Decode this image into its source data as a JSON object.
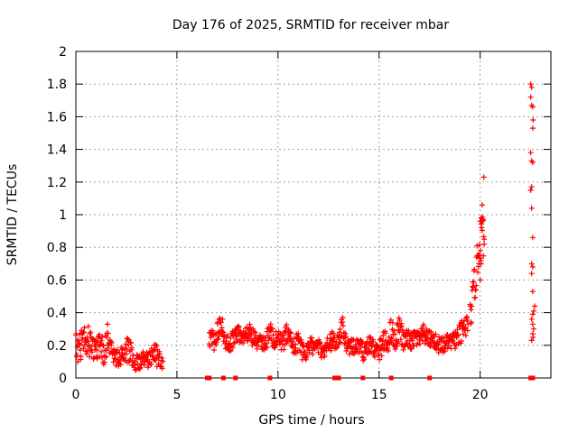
{
  "chart_data": {
    "type": "scatter",
    "title": "Day 176 of 2025, SRMTID for receiver mbar",
    "xlabel": "GPS time / hours",
    "ylabel": "SRMTID / TECUs",
    "xlim": [
      0,
      23.5
    ],
    "ylim": [
      0,
      2
    ],
    "xticks": [
      0,
      5,
      10,
      15,
      20
    ],
    "xtick_labels": [
      "0",
      "5",
      "10",
      "15",
      "20"
    ],
    "yticks": [
      0,
      0.2,
      0.4,
      0.6,
      0.8,
      1.0,
      1.2,
      1.4,
      1.6,
      1.8,
      2.0
    ],
    "ytick_labels": [
      "0",
      "0.2",
      "0.4",
      "0.6",
      "0.8",
      "1",
      "1.2",
      "1.4",
      "1.6",
      "1.8",
      "2"
    ],
    "grid": true,
    "marker": "+",
    "color": "#ff0000",
    "series": [
      {
        "name": "SRMTID",
        "segments": [
          {
            "x": [
              0.0,
              0.2,
              0.4,
              0.6,
              0.8,
              1.0,
              1.2,
              1.4,
              1.6,
              1.8,
              2.0,
              2.2,
              2.4,
              2.6,
              2.8,
              3.0,
              3.2,
              3.4,
              3.6,
              3.8,
              4.0,
              4.2,
              4.3
            ],
            "y": [
              0.2,
              0.18,
              0.26,
              0.22,
              0.2,
              0.17,
              0.2,
              0.15,
              0.28,
              0.14,
              0.12,
              0.13,
              0.14,
              0.2,
              0.12,
              0.09,
              0.1,
              0.12,
              0.11,
              0.14,
              0.15,
              0.08,
              0.1
            ],
            "spread": [
              0.09,
              0.1,
              0.08,
              0.1,
              0.09,
              0.07,
              0.08,
              0.08,
              0.09,
              0.06,
              0.06,
              0.06,
              0.06,
              0.1,
              0.06,
              0.05,
              0.05,
              0.05,
              0.05,
              0.06,
              0.08,
              0.05,
              0.05
            ]
          },
          {
            "x": [
              6.6,
              6.8,
              7.0,
              7.2,
              7.4,
              7.6,
              7.8,
              8.0,
              8.2,
              8.4,
              8.6,
              8.8,
              9.0,
              9.2,
              9.4,
              9.6,
              9.8,
              10.0,
              10.2,
              10.4,
              10.6,
              10.8,
              11.0,
              11.2,
              11.4,
              11.6,
              11.8,
              12.0,
              12.2,
              12.4,
              12.6,
              12.8,
              13.0,
              13.2,
              13.4,
              13.6,
              13.8,
              14.0,
              14.2,
              14.4,
              14.6,
              14.8,
              15.0,
              15.2,
              15.4,
              15.6,
              15.8,
              16.0,
              16.2,
              16.4,
              16.6,
              16.8,
              17.0,
              17.2,
              17.4,
              17.6,
              17.8,
              18.0,
              18.2,
              18.4,
              18.6,
              18.8,
              19.0,
              19.2,
              19.4
            ],
            "y": [
              0.25,
              0.22,
              0.28,
              0.34,
              0.22,
              0.2,
              0.24,
              0.28,
              0.26,
              0.25,
              0.29,
              0.24,
              0.22,
              0.2,
              0.21,
              0.3,
              0.22,
              0.25,
              0.2,
              0.27,
              0.24,
              0.2,
              0.22,
              0.16,
              0.15,
              0.2,
              0.19,
              0.2,
              0.16,
              0.19,
              0.22,
              0.23,
              0.21,
              0.32,
              0.2,
              0.19,
              0.18,
              0.2,
              0.16,
              0.19,
              0.21,
              0.17,
              0.16,
              0.23,
              0.2,
              0.3,
              0.22,
              0.32,
              0.22,
              0.24,
              0.22,
              0.25,
              0.23,
              0.27,
              0.24,
              0.24,
              0.22,
              0.2,
              0.2,
              0.22,
              0.22,
              0.24,
              0.26,
              0.3,
              0.33
            ],
            "spread": [
              0.06,
              0.07,
              0.06,
              0.06,
              0.05,
              0.05,
              0.06,
              0.06,
              0.05,
              0.05,
              0.06,
              0.06,
              0.06,
              0.05,
              0.05,
              0.06,
              0.06,
              0.06,
              0.06,
              0.06,
              0.05,
              0.06,
              0.06,
              0.06,
              0.05,
              0.06,
              0.05,
              0.05,
              0.05,
              0.06,
              0.06,
              0.06,
              0.05,
              0.08,
              0.05,
              0.05,
              0.05,
              0.05,
              0.06,
              0.05,
              0.06,
              0.06,
              0.06,
              0.08,
              0.06,
              0.08,
              0.07,
              0.07,
              0.06,
              0.06,
              0.05,
              0.06,
              0.05,
              0.06,
              0.05,
              0.05,
              0.05,
              0.06,
              0.05,
              0.05,
              0.05,
              0.06,
              0.07,
              0.08,
              0.08
            ]
          },
          {
            "x": [
              19.5,
              19.6,
              19.7,
              19.8,
              19.9,
              20.0,
              20.1,
              20.2
            ],
            "y": [
              0.38,
              0.45,
              0.55,
              0.65,
              0.75,
              0.82,
              0.88,
              0.85
            ],
            "spread": [
              0.08,
              0.1,
              0.12,
              0.12,
              0.12,
              0.12,
              0.14,
              0.1
            ]
          }
        ],
        "sparse_points": [
          {
            "x": 20.0,
            "y": 0.96
          },
          {
            "x": 20.05,
            "y": 0.98
          },
          {
            "x": 20.1,
            "y": 1.06
          },
          {
            "x": 20.15,
            "y": 0.97
          },
          {
            "x": 20.18,
            "y": 1.23
          },
          {
            "x": 20.2,
            "y": 0.82
          },
          {
            "x": 20.0,
            "y": 0.6
          },
          {
            "x": 20.05,
            "y": 0.7
          },
          {
            "x": 22.5,
            "y": 1.8
          },
          {
            "x": 22.55,
            "y": 1.78
          },
          {
            "x": 22.5,
            "y": 1.72
          },
          {
            "x": 22.55,
            "y": 1.67
          },
          {
            "x": 22.6,
            "y": 1.66
          },
          {
            "x": 22.62,
            "y": 1.58
          },
          {
            "x": 22.6,
            "y": 1.53
          },
          {
            "x": 22.5,
            "y": 1.38
          },
          {
            "x": 22.55,
            "y": 1.33
          },
          {
            "x": 22.6,
            "y": 1.32
          },
          {
            "x": 22.55,
            "y": 1.17
          },
          {
            "x": 22.5,
            "y": 1.15
          },
          {
            "x": 22.55,
            "y": 1.04
          },
          {
            "x": 22.6,
            "y": 0.86
          },
          {
            "x": 22.55,
            "y": 0.7
          },
          {
            "x": 22.6,
            "y": 0.68
          },
          {
            "x": 22.55,
            "y": 0.64
          },
          {
            "x": 22.6,
            "y": 0.53
          },
          {
            "x": 22.7,
            "y": 0.44
          },
          {
            "x": 22.65,
            "y": 0.41
          },
          {
            "x": 22.6,
            "y": 0.39
          },
          {
            "x": 22.55,
            "y": 0.36
          },
          {
            "x": 22.6,
            "y": 0.33
          },
          {
            "x": 22.65,
            "y": 0.3
          },
          {
            "x": 22.6,
            "y": 0.27
          },
          {
            "x": 22.62,
            "y": 0.25
          },
          {
            "x": 22.55,
            "y": 0.23
          }
        ],
        "zero_points": [
          {
            "x": 6.5,
            "y": 0
          },
          {
            "x": 6.6,
            "y": 0
          },
          {
            "x": 7.3,
            "y": 0
          },
          {
            "x": 7.9,
            "y": 0
          },
          {
            "x": 9.6,
            "y": 0
          },
          {
            "x": 12.8,
            "y": 0
          },
          {
            "x": 13.0,
            "y": 0
          },
          {
            "x": 14.2,
            "y": 0
          },
          {
            "x": 15.6,
            "y": 0
          },
          {
            "x": 17.5,
            "y": 0
          },
          {
            "x": 22.5,
            "y": 0
          },
          {
            "x": 22.6,
            "y": 0
          }
        ]
      }
    ]
  }
}
